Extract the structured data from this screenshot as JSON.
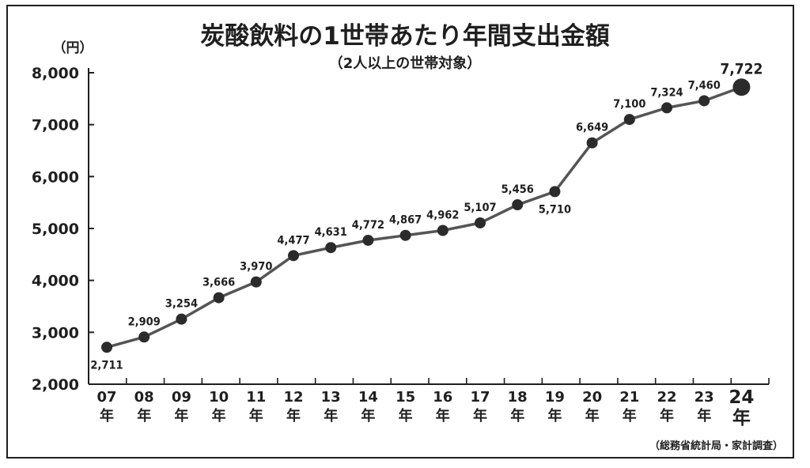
{
  "chart_data": {
    "type": "line",
    "title": "炭酸飲料の1世帯あたり年間支出金額",
    "subtitle": "（2人以上の世帯対象）",
    "ylabel": "（円）",
    "source": "（総務省統計局・家計調査）",
    "ylim": [
      2000,
      8000
    ],
    "yticks": [
      "2,000",
      "3,000",
      "4,000",
      "5,000",
      "6,000",
      "7,000",
      "8,000"
    ],
    "x_year_labels": [
      "07",
      "08",
      "09",
      "10",
      "11",
      "12",
      "13",
      "14",
      "15",
      "16",
      "17",
      "18",
      "19",
      "20",
      "21",
      "22",
      "23",
      "24"
    ],
    "x_unit_label": "年",
    "values": [
      2711,
      2909,
      3254,
      3666,
      3970,
      4477,
      4631,
      4772,
      4867,
      4962,
      5107,
      5456,
      5710,
      6649,
      7100,
      7324,
      7460,
      7722
    ],
    "value_labels": [
      "2,711",
      "2,909",
      "3,254",
      "3,666",
      "3,970",
      "4,477",
      "4,631",
      "4,772",
      "4,867",
      "4,962",
      "5,107",
      "5,456",
      "5,710",
      "6,649",
      "7,100",
      "7,324",
      "7,460",
      "7,722"
    ],
    "series": [
      {
        "values": [
          2711,
          2909,
          3254,
          3666,
          3970,
          4477,
          4631,
          4772,
          4867,
          4962,
          5107,
          5456,
          5710,
          6649,
          7100,
          7324,
          7460,
          7722
        ]
      }
    ],
    "grid": false,
    "colors": {
      "line": "#555555",
      "marker": "#2b2b2b",
      "text": "#1f1f1f",
      "frame": "#1f1f1f"
    }
  }
}
